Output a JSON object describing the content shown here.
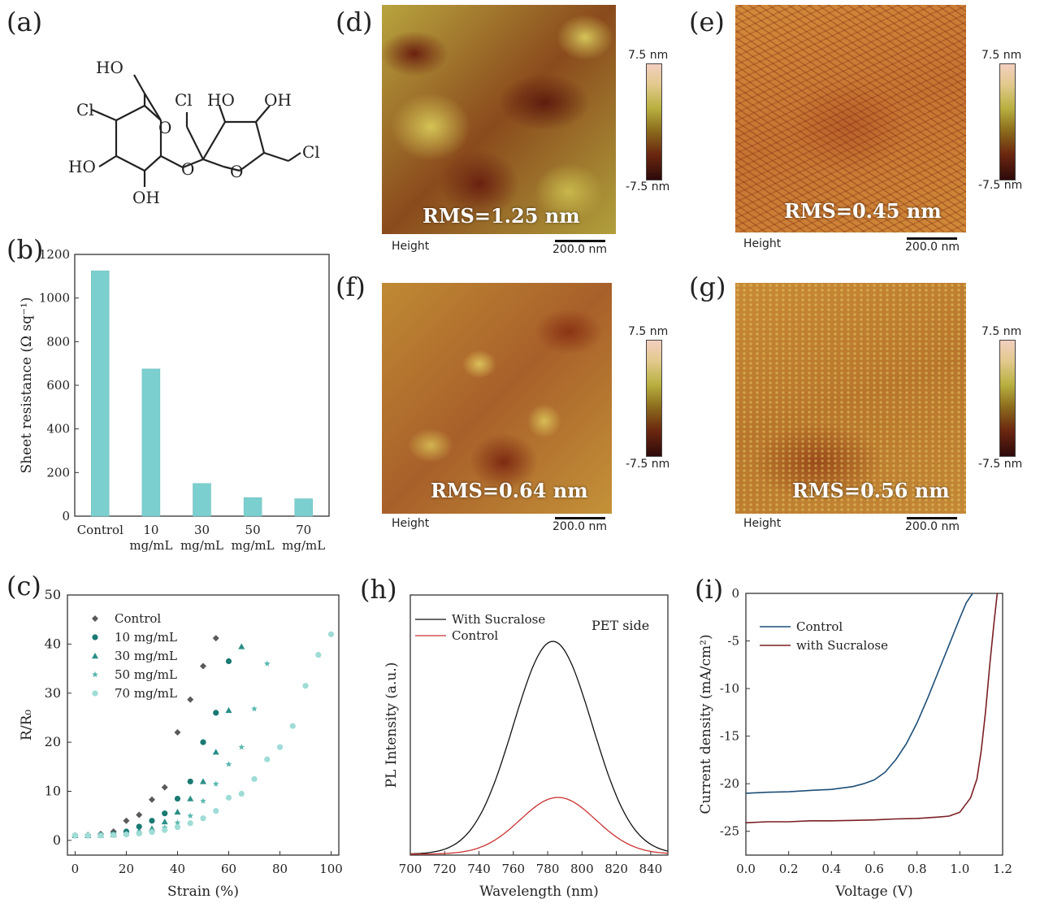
{
  "panel_labels": {
    "a": "(a)",
    "b": "(b)",
    "c": "(c)",
    "d": "(d)",
    "e": "(e)",
    "f": "(f)",
    "g": "(g)",
    "h": "(h)",
    "i": "(i)"
  },
  "molecule": {
    "labels": [
      "HO",
      "Cl",
      "HO",
      "OH",
      "O",
      "O",
      "Cl",
      "HO",
      "OH",
      "O",
      "Cl"
    ]
  },
  "afm": {
    "height_label": "Height",
    "scale_label": "200.0 nm",
    "cbar_top": "7.5 nm",
    "cbar_bottom": "-7.5 nm",
    "panels": [
      {
        "id": "d",
        "rms": "RMS=1.25 nm",
        "colors": [
          "#c9b94a",
          "#7a2a10"
        ]
      },
      {
        "id": "e",
        "rms": "RMS=0.45 nm",
        "colors": [
          "#d08a3a",
          "#8a3212"
        ]
      },
      {
        "id": "f",
        "rms": "RMS=0.64 nm",
        "colors": [
          "#c79436",
          "#8b3a14"
        ]
      },
      {
        "id": "g",
        "rms": "RMS=0.56 nm",
        "colors": [
          "#c48a34",
          "#8a3a12"
        ]
      }
    ]
  },
  "chart_data": [
    {
      "panel": "b",
      "type": "bar",
      "categories": [
        "Control",
        "10 mg/mL",
        "30 mg/mL",
        "50 mg/mL",
        "70 mg/mL"
      ],
      "category_lines": [
        [
          "Control"
        ],
        [
          "10",
          "mg/mL"
        ],
        [
          "30",
          "mg/mL"
        ],
        [
          "50",
          "mg/mL"
        ],
        [
          "70",
          "mg/mL"
        ]
      ],
      "values": [
        1125,
        675,
        150,
        85,
        80
      ],
      "ylabel": "Sheet resistance (Ω sq⁻¹)",
      "ylim": [
        0,
        1200
      ],
      "yticks": [
        0,
        200,
        400,
        600,
        800,
        1000,
        1200
      ],
      "bar_color": "#7ccfcf"
    },
    {
      "panel": "c",
      "type": "scatter",
      "xlabel": "Strain (%)",
      "ylabel": "R/R₀",
      "xlim": [
        -3,
        103
      ],
      "ylim": [
        -3,
        50
      ],
      "xticks": [
        0,
        20,
        40,
        60,
        80,
        100
      ],
      "yticks": [
        0,
        10,
        20,
        30,
        40,
        50
      ],
      "series": [
        {
          "name": "Control",
          "marker": "diamond",
          "color": "#5a5a5a",
          "x": [
            0,
            5,
            10,
            15,
            20,
            25,
            30,
            35,
            40,
            45,
            50,
            55
          ],
          "y": [
            1.0,
            1.1,
            1.3,
            1.8,
            4.0,
            5.2,
            8.3,
            10.8,
            22.0,
            28.7,
            35.5,
            41.2
          ]
        },
        {
          "name": "10 mg/mL",
          "marker": "circle",
          "color": "#1a7a72",
          "x": [
            0,
            5,
            10,
            15,
            20,
            25,
            30,
            35,
            40,
            45,
            50,
            55,
            60
          ],
          "y": [
            1.0,
            1.0,
            1.1,
            1.3,
            1.8,
            2.8,
            4.0,
            5.5,
            8.5,
            12.0,
            20.0,
            26.0,
            36.5
          ]
        },
        {
          "name": "30 mg/mL",
          "marker": "triangle",
          "color": "#2a8f88",
          "x": [
            0,
            5,
            10,
            15,
            20,
            25,
            30,
            35,
            40,
            45,
            50,
            55,
            60,
            65
          ],
          "y": [
            1.0,
            1.0,
            1.1,
            1.2,
            1.5,
            1.9,
            2.4,
            3.8,
            5.8,
            8.5,
            12.0,
            18.0,
            26.5,
            39.5
          ]
        },
        {
          "name": "50 mg/mL",
          "marker": "star",
          "color": "#5ab8b0",
          "x": [
            0,
            5,
            10,
            15,
            20,
            25,
            30,
            35,
            40,
            45,
            50,
            55,
            60,
            65,
            70,
            75
          ],
          "y": [
            1.0,
            1.0,
            1.0,
            1.1,
            1.3,
            1.6,
            2.0,
            2.6,
            3.6,
            5.0,
            8.0,
            11.5,
            15.5,
            19.0,
            26.8,
            36.0
          ]
        },
        {
          "name": "70 mg/mL",
          "marker": "circle",
          "color": "#9fdcd6",
          "x": [
            0,
            5,
            10,
            15,
            20,
            25,
            30,
            35,
            40,
            45,
            50,
            55,
            60,
            65,
            70,
            75,
            80,
            85,
            90,
            95,
            100
          ],
          "y": [
            1.0,
            1.0,
            1.0,
            1.1,
            1.2,
            1.4,
            1.7,
            2.1,
            2.7,
            3.5,
            4.5,
            6.0,
            8.7,
            9.5,
            12.5,
            16.5,
            19.0,
            23.3,
            31.5,
            37.8,
            42.0
          ]
        }
      ]
    },
    {
      "panel": "h",
      "type": "line",
      "xlabel": "Wavelength (nm)",
      "ylabel": "PL Intensity (a.u.)",
      "xlim": [
        700,
        850
      ],
      "ylim": [
        0,
        1.1
      ],
      "xticks": [
        700,
        720,
        740,
        760,
        780,
        800,
        820,
        840
      ],
      "annotation": "PET side",
      "series": [
        {
          "name": "With Sucralose",
          "color": "#111111",
          "peak": 783,
          "amp": 0.9,
          "sigma": 23
        },
        {
          "name": "Control",
          "color": "#cc3333",
          "peak": 786,
          "amp": 0.24,
          "sigma": 22
        }
      ]
    },
    {
      "panel": "i",
      "type": "line",
      "xlabel": "Voltage (V)",
      "ylabel": "Current density (mA/cm²)",
      "xlim": [
        0.0,
        1.2
      ],
      "ylim": [
        -27.5,
        0
      ],
      "xticks": [
        0.0,
        0.2,
        0.4,
        0.6,
        0.8,
        1.0,
        1.2
      ],
      "yticks": [
        0,
        -5,
        -10,
        -15,
        -20,
        -25
      ],
      "series": [
        {
          "name": "Control",
          "color": "#1d4f78",
          "x": [
            0.0,
            0.1,
            0.2,
            0.3,
            0.4,
            0.5,
            0.55,
            0.6,
            0.65,
            0.7,
            0.75,
            0.8,
            0.85,
            0.9,
            0.95,
            1.0,
            1.03,
            1.06
          ],
          "y": [
            -21.0,
            -20.9,
            -20.85,
            -20.7,
            -20.6,
            -20.3,
            -20.0,
            -19.6,
            -18.8,
            -17.5,
            -15.8,
            -13.6,
            -11.0,
            -8.2,
            -5.4,
            -2.6,
            -1.0,
            0.0
          ]
        },
        {
          "name": "with Sucralose",
          "color": "#7a1f24",
          "x": [
            0.0,
            0.1,
            0.2,
            0.3,
            0.4,
            0.5,
            0.6,
            0.7,
            0.8,
            0.9,
            0.95,
            1.0,
            1.05,
            1.08,
            1.1,
            1.12,
            1.14,
            1.16,
            1.175
          ],
          "y": [
            -24.1,
            -24.0,
            -24.0,
            -23.9,
            -23.9,
            -23.85,
            -23.8,
            -23.7,
            -23.65,
            -23.5,
            -23.4,
            -23.0,
            -21.5,
            -19.5,
            -16.5,
            -12.5,
            -7.5,
            -3.0,
            0.0
          ]
        }
      ]
    }
  ]
}
